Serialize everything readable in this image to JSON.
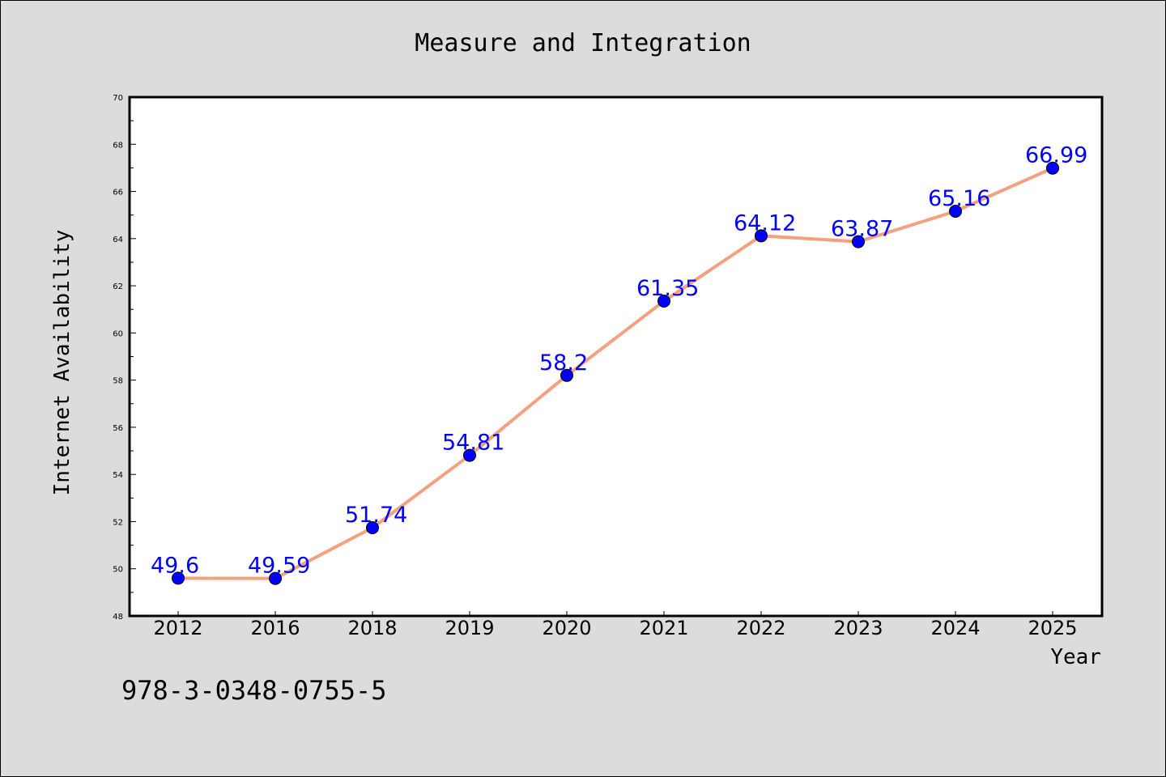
{
  "chart_data": {
    "type": "line",
    "title": "Measure and Integration",
    "xlabel": "Year",
    "ylabel": "Internet Availability",
    "categories": [
      "2012",
      "2016",
      "2018",
      "2019",
      "2020",
      "2021",
      "2022",
      "2023",
      "2024",
      "2025"
    ],
    "series": [
      {
        "values": [
          49.6,
          49.59,
          51.74,
          54.81,
          58.2,
          61.35,
          64.12,
          63.87,
          65.16,
          66.99
        ],
        "labels": [
          "49.6",
          "49.59",
          "51.74",
          "54.81",
          "58.2",
          "61.35",
          "64.12",
          "63.87",
          "65.16",
          "66.99"
        ],
        "line_color": "#f5a07e",
        "marker_color": "#0000ff"
      }
    ],
    "ylim": [
      48,
      70
    ],
    "y_ticks": [
      "48",
      "50",
      "52",
      "54",
      "56",
      "58",
      "60",
      "62",
      "64",
      "66",
      "68",
      "70"
    ],
    "grid": false,
    "legend": "none"
  },
  "footnote": "978-3-0348-0755-5",
  "colors": {
    "background": "#dcdcdc",
    "plot_background": "#ffffff",
    "line": "#f5a07e",
    "marker": "#0000ff",
    "data_label": "#0000ff"
  }
}
